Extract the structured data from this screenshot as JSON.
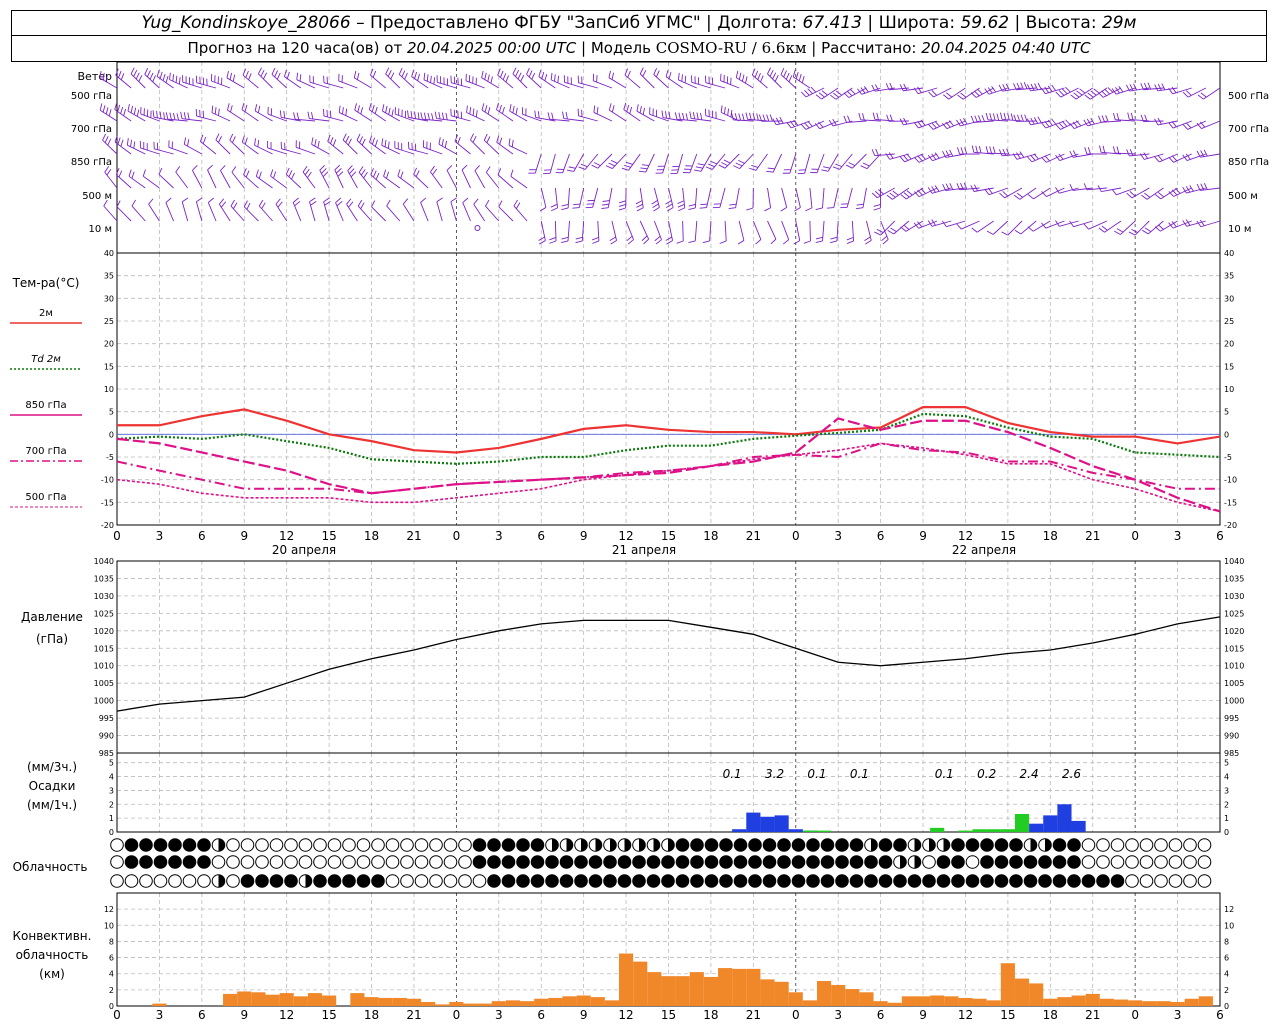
{
  "header": {
    "station": "Yug_Kondinskoye_28066",
    "provider": "– Предоставлено ФГБУ \"ЗапСиб УГМС\"",
    "lon_label": "Долгота:",
    "lon": "67.413",
    "lat_label": "Широта:",
    "lat": "59.62",
    "alt_label": "Высота:",
    "alt": "29м",
    "forecast_label": "Прогноз на 120 часа(ов) от",
    "forecast_from": "20.04.2025 00:00 UTC",
    "model_label": "Модель",
    "model": "COSMO-RU / 6.6км",
    "calc_label": "Рассчитано:",
    "calc": "20.04.2025 04:40 UTC"
  },
  "labels": {
    "wind": "Ветер",
    "wind_levels": [
      "500 гПа",
      "700 гПа",
      "850 гПа",
      "500 м",
      "10  м"
    ],
    "temp": "Тем-ра(°C)",
    "temp_legend": [
      "2м",
      "Td 2м",
      "850 гПа",
      "700 гПа",
      "500 гПа"
    ],
    "pressure": [
      "Давление",
      "(гПа)"
    ],
    "precip": [
      "(мм/3ч.)",
      "Осадки",
      "(мм/1ч.)"
    ],
    "cloud": "Облачность",
    "conv": [
      "Конвективн.",
      "облачность",
      "(км)"
    ],
    "days": [
      "20 апреля",
      "21 апреля",
      "22 апреля"
    ],
    "hour_ticks": [
      "0",
      "3",
      "6",
      "9",
      "12",
      "15",
      "18",
      "21",
      "0",
      "3",
      "6",
      "9",
      "12",
      "15",
      "18",
      "21",
      "0",
      "3",
      "6",
      "9",
      "12",
      "15",
      "18",
      "21",
      "0",
      "3",
      "6"
    ]
  },
  "colors": {
    "wind": "#7a22c8",
    "t2m": "#ee3333",
    "td2m": "#0a7a0a",
    "t850": "#dd1188",
    "t700": "#dd1188",
    "t500": "#dd1188",
    "precip_blue": "#1f3fe0",
    "precip_green": "#22cc22",
    "conv": "#f0882a"
  },
  "chart_data": [
    {
      "type": "line",
      "name": "temperature",
      "x": [
        0,
        3,
        6,
        9,
        12,
        15,
        18,
        21,
        24,
        27,
        30,
        33,
        36,
        39,
        42,
        45,
        48,
        51,
        54,
        57,
        60,
        63,
        66,
        69,
        72,
        75,
        78
      ],
      "xlabel": "",
      "ylim": [
        -20,
        40
      ],
      "series": [
        {
          "name": "2м",
          "values": [
            2,
            2,
            4,
            5.5,
            3,
            0,
            -1.5,
            -3.5,
            -4,
            -3,
            -1,
            1.2,
            2,
            1,
            0.5,
            0.5,
            0,
            1,
            1.5,
            6,
            6,
            2.5,
            0.5,
            -0.5,
            -0.5,
            -2,
            -0.5
          ]
        },
        {
          "name": "Td 2м",
          "values": [
            -1,
            -0.5,
            -1,
            0,
            -1.5,
            -3,
            -5.5,
            -6,
            -6.5,
            -6,
            -5,
            -5,
            -3.5,
            -2.5,
            -2.5,
            -1,
            -0.3,
            0.3,
            1,
            4.5,
            4,
            1.5,
            -0.5,
            -1,
            -4,
            -4.5,
            -5
          ]
        },
        {
          "name": "850 гПа",
          "values": [
            -1,
            -2,
            -4,
            -6,
            -8,
            -11,
            -13,
            -12,
            -11,
            -10.5,
            -10,
            -9.5,
            -9,
            -8.5,
            -7,
            -6,
            -4,
            3.5,
            1,
            3,
            3,
            0.5,
            -3,
            -7,
            -10,
            -14,
            -17
          ]
        },
        {
          "name": "700 гПа",
          "values": [
            -6,
            -8,
            -10,
            -12,
            -12,
            -12,
            -13,
            -12,
            -11,
            -10.5,
            -10,
            -9.5,
            -8.5,
            -8,
            -7,
            -5,
            -4.5,
            -5,
            -2,
            -3.5,
            -4,
            -6,
            -6,
            -8.5,
            -10,
            -12,
            -12
          ]
        },
        {
          "name": "500 гПа",
          "values": [
            -10,
            -11,
            -13,
            -14,
            -14,
            -14,
            -15,
            -15,
            -14,
            -13,
            -12,
            -10,
            -9,
            -8,
            -7,
            -5.5,
            -4.5,
            -3.5,
            -2,
            -3,
            -4.5,
            -6.5,
            -6.5,
            -10,
            -12,
            -15,
            -17
          ]
        }
      ]
    },
    {
      "type": "line",
      "name": "pressure",
      "x": [
        0,
        3,
        6,
        9,
        12,
        15,
        18,
        21,
        24,
        27,
        30,
        33,
        36,
        39,
        42,
        45,
        48,
        51,
        54,
        57,
        60,
        63,
        66,
        69,
        72,
        75,
        78
      ],
      "ylim": [
        985,
        1040
      ],
      "series": [
        {
          "name": "Давление",
          "values": [
            997,
            999,
            1000,
            1001,
            1005,
            1009,
            1012,
            1014.5,
            1017.5,
            1020,
            1022,
            1023,
            1023,
            1023,
            1021,
            1019,
            1015,
            1011,
            1010,
            1011,
            1012,
            1013.5,
            1014.5,
            1016.5,
            1019,
            1022,
            1024
          ]
        }
      ]
    },
    {
      "type": "bar",
      "name": "precipitation",
      "ylim": [
        0,
        5
      ],
      "data_labels": [
        {
          "x": 43.5,
          "text": "0.1"
        },
        {
          "x": 46.5,
          "text": "3.2"
        },
        {
          "x": 49.5,
          "text": "0.1"
        },
        {
          "x": 52.5,
          "text": "0.1"
        },
        {
          "x": 58.5,
          "text": "0.1"
        },
        {
          "x": 61.5,
          "text": "0.2"
        },
        {
          "x": 64.5,
          "text": "2.4"
        },
        {
          "x": 67.5,
          "text": "2.6"
        }
      ],
      "series": [
        {
          "name": "Осадки (мм/1ч.)",
          "color": "precip_blue",
          "x": [
            44,
            45,
            46,
            47,
            48,
            49,
            65,
            66,
            67,
            68
          ],
          "values": [
            0.2,
            1.4,
            1.1,
            1.2,
            0.2,
            0.1,
            0.6,
            1.2,
            2.0,
            0.8
          ]
        },
        {
          "name": "Осадки (мм/3ч.)",
          "color": "precip_green",
          "x": [
            49,
            50,
            58,
            60,
            61,
            62,
            63,
            64
          ],
          "values": [
            0.1,
            0.1,
            0.3,
            0.1,
            0.2,
            0.2,
            0.2,
            1.3
          ]
        }
      ]
    },
    {
      "type": "bar",
      "name": "convective_cloud",
      "ylim": [
        0,
        14
      ],
      "x": [
        3,
        8,
        9,
        10,
        11,
        12,
        13,
        14,
        15,
        17,
        18,
        19,
        20,
        21,
        22,
        23,
        24,
        25,
        26,
        27,
        28,
        29,
        30,
        31,
        32,
        33,
        34,
        35,
        36,
        37,
        38,
        39,
        40,
        41,
        42,
        43,
        44,
        45,
        46,
        47,
        48,
        49,
        50,
        51,
        52,
        53,
        54,
        55,
        56,
        57,
        58,
        59,
        60,
        61,
        62,
        63,
        64,
        65,
        66,
        67,
        68,
        69,
        70,
        71,
        72,
        73,
        74,
        75,
        76,
        77
      ],
      "values": [
        0.3,
        1.5,
        1.8,
        1.7,
        1.4,
        1.6,
        1.2,
        1.6,
        1.3,
        1.6,
        1.1,
        1.0,
        1.0,
        0.9,
        0.5,
        0.2,
        0.5,
        0.3,
        0.3,
        0.6,
        0.7,
        0.6,
        0.9,
        1.0,
        1.2,
        1.3,
        1.1,
        0.7,
        6.5,
        5.5,
        4.2,
        3.7,
        3.7,
        4.2,
        3.6,
        4.7,
        4.6,
        4.6,
        3.3,
        3.0,
        1.7,
        0.7,
        3.1,
        2.6,
        2.1,
        1.7,
        0.6,
        0.4,
        1.2,
        1.2,
        1.3,
        1.2,
        1.0,
        0.9,
        0.7,
        5.3,
        3.4,
        2.8,
        0.9,
        1.1,
        1.3,
        1.5,
        0.9,
        0.8,
        0.7,
        0.6,
        0.6,
        0.5,
        0.9,
        1.2
      ]
    }
  ],
  "cloud_rows": {
    "levels": [
      "high",
      "mid",
      "low"
    ],
    "row1": "0111111200000000000000000111112222222221111111111111211222111112211000000000",
    "row2": "0111111000000000000000000111111111111111111111111111112201101111111000000000",
    "row3": "0000000201111211111000000011111111111111111111111111111111111111111111000000"
  }
}
